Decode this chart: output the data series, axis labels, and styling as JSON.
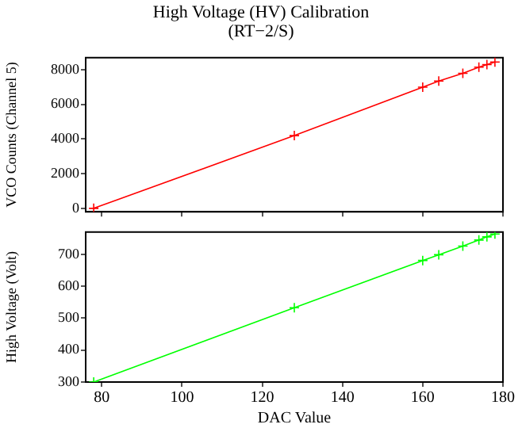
{
  "chart_data": [
    {
      "type": "line",
      "title": "High Voltage (HV) Calibration",
      "subtitle": "(RT−2/S)",
      "ylabel": "VCO Counts (Channel 5)",
      "x": [
        78,
        128,
        160,
        164,
        170,
        174,
        176,
        178
      ],
      "series": [
        {
          "color": "#ff0000",
          "values": [
            0,
            4200,
            7000,
            7350,
            7800,
            8150,
            8300,
            8450
          ]
        }
      ],
      "xlim": [
        76,
        180
      ],
      "xticks": [
        80,
        100,
        120,
        140,
        160,
        180
      ],
      "ylim": [
        -200,
        8700
      ],
      "yticks": [
        0,
        2000,
        4000,
        6000,
        8000
      ],
      "tick_labels": "y",
      "marker": "cross",
      "grid": false,
      "legend": false
    },
    {
      "type": "line",
      "xlabel": "DAC Value",
      "ylabel": "High Voltage (Volt)",
      "x": [
        78,
        128,
        160,
        164,
        170,
        174,
        176,
        178
      ],
      "series": [
        {
          "color": "#00ff00",
          "values": [
            300,
            533,
            681,
            699,
            726,
            745,
            755,
            764
          ]
        }
      ],
      "xlim": [
        76,
        180
      ],
      "xticks": [
        80,
        100,
        120,
        140,
        160,
        180
      ],
      "ylim": [
        300,
        770
      ],
      "yticks": [
        300,
        400,
        500,
        600,
        700
      ],
      "marker": "cross",
      "grid": false,
      "legend": false
    }
  ]
}
